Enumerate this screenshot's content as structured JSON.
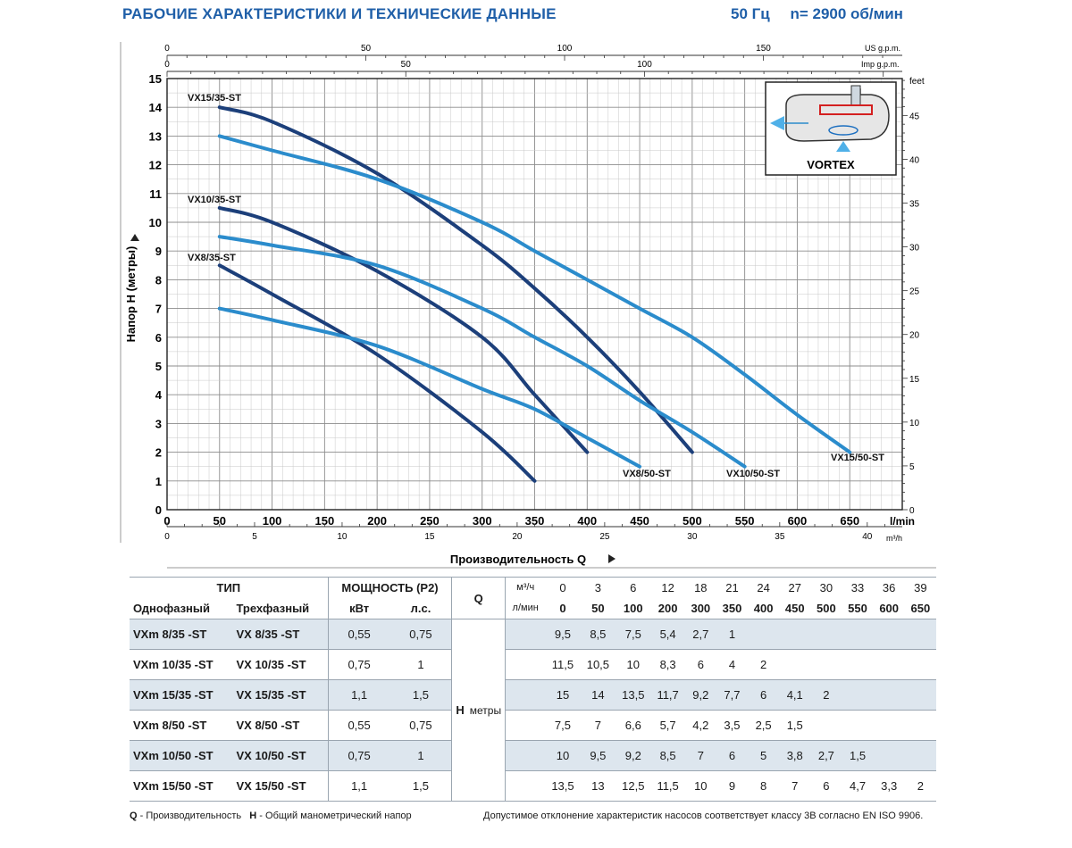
{
  "header": {
    "title": "РАБОЧИЕ ХАРАКТЕРИСТИКИ И ТЕХНИЧЕСКИЕ ДАННЫЕ",
    "freq": "50 Гц",
    "speed": "n= 2900 об/мин"
  },
  "chart_data": {
    "type": "line",
    "xlabel": "Производительность Q",
    "ylabel": "Напор H (метры)",
    "x_unit": "l/min",
    "x_ticks": [
      0,
      50,
      100,
      150,
      200,
      250,
      300,
      350,
      400,
      450,
      500,
      550,
      600,
      650
    ],
    "xlim": [
      0,
      700
    ],
    "ylim": [
      0,
      15
    ],
    "y_ticks": [
      0,
      1,
      2,
      3,
      4,
      5,
      6,
      7,
      8,
      9,
      10,
      11,
      12,
      13,
      14,
      15
    ],
    "top_axis_us": {
      "unit": "US g.p.m.",
      "ticks": [
        0,
        50,
        100,
        150
      ]
    },
    "top_axis_imp": {
      "unit": "Imp g.p.m.",
      "ticks": [
        0,
        50,
        100
      ]
    },
    "bottom_axis_m3h": {
      "unit": "m³/h",
      "ticks": [
        0,
        5,
        10,
        15,
        20,
        25,
        30,
        35,
        40
      ]
    },
    "right_axis_feet": {
      "unit": "feet",
      "ticks": [
        0,
        5,
        10,
        15,
        20,
        25,
        30,
        35,
        40,
        45
      ]
    },
    "inset_label": "VORTEX",
    "grid": true,
    "series": [
      {
        "name": "VX8/35-ST",
        "label": "VX8/35-ST",
        "color": "#1c3f7a",
        "x": [
          50,
          100,
          200,
          300,
          350
        ],
        "y": [
          8.5,
          7.5,
          5.4,
          2.7,
          1
        ]
      },
      {
        "name": "VX10/35-ST",
        "label": "VX10/35-ST",
        "color": "#1c3f7a",
        "x": [
          50,
          100,
          200,
          300,
          350,
          400
        ],
        "y": [
          10.5,
          10,
          8.3,
          6,
          4,
          2
        ]
      },
      {
        "name": "VX15/35-ST",
        "label": "VX15/35-ST",
        "color": "#1c3f7a",
        "x": [
          50,
          100,
          200,
          300,
          350,
          400,
          450,
          500
        ],
        "y": [
          14,
          13.5,
          11.7,
          9.2,
          7.7,
          6,
          4.1,
          2
        ]
      },
      {
        "name": "VX8/50-ST",
        "label": "VX8/50-ST",
        "color": "#2b8ccc",
        "x": [
          50,
          100,
          200,
          300,
          350,
          400,
          450
        ],
        "y": [
          7,
          6.6,
          5.7,
          4.2,
          3.5,
          2.5,
          1.5
        ]
      },
      {
        "name": "VX10/50-ST",
        "label": "VX10/50-ST",
        "color": "#2b8ccc",
        "x": [
          50,
          100,
          200,
          300,
          350,
          400,
          450,
          500,
          550
        ],
        "y": [
          9.5,
          9.2,
          8.5,
          7,
          6,
          5,
          3.8,
          2.7,
          1.5
        ]
      },
      {
        "name": "VX15/50-ST",
        "label": "VX15/50-ST",
        "color": "#2b8ccc",
        "x": [
          50,
          100,
          200,
          300,
          350,
          400,
          450,
          500,
          550,
          600,
          650
        ],
        "y": [
          13,
          12.5,
          11.5,
          10,
          9,
          8,
          7,
          6,
          4.7,
          3.3,
          2
        ]
      }
    ]
  },
  "table": {
    "type_header": "ТИП",
    "power_header": "МОЩНОСТЬ (P2)",
    "q_label": "Q",
    "q_unit_m3": "м³/ч",
    "q_unit_l": "л/мин",
    "col_single": "Однофазный",
    "col_three": "Трехфазный",
    "col_kw": "кВт",
    "col_hp": "л.с.",
    "h_label": "H",
    "h_unit": "метры",
    "q_m3": [
      "0",
      "3",
      "6",
      "12",
      "18",
      "21",
      "24",
      "27",
      "30",
      "33",
      "36",
      "39"
    ],
    "q_l": [
      "0",
      "50",
      "100",
      "200",
      "300",
      "350",
      "400",
      "450",
      "500",
      "550",
      "600",
      "650"
    ],
    "rows": [
      {
        "single": "VXm 8/35  -ST",
        "three": "VX 8/35  -ST",
        "kw": "0,55",
        "hp": "0,75",
        "h": [
          "9,5",
          "8,5",
          "7,5",
          "5,4",
          "2,7",
          "1",
          "",
          "",
          "",
          "",
          "",
          ""
        ]
      },
      {
        "single": "VXm 10/35 -ST",
        "three": "VX 10/35 -ST",
        "kw": "0,75",
        "hp": "1",
        "h": [
          "11,5",
          "10,5",
          "10",
          "8,3",
          "6",
          "4",
          "2",
          "",
          "",
          "",
          "",
          ""
        ]
      },
      {
        "single": "VXm 15/35 -ST",
        "three": "VX 15/35 -ST",
        "kw": "1,1",
        "hp": "1,5",
        "h": [
          "15",
          "14",
          "13,5",
          "11,7",
          "9,2",
          "7,7",
          "6",
          "4,1",
          "2",
          "",
          "",
          ""
        ]
      },
      {
        "single": "VXm 8/50  -ST",
        "three": "VX 8/50  -ST",
        "kw": "0,55",
        "hp": "0,75",
        "h": [
          "7,5",
          "7",
          "6,6",
          "5,7",
          "4,2",
          "3,5",
          "2,5",
          "1,5",
          "",
          "",
          "",
          ""
        ]
      },
      {
        "single": "VXm 10/50 -ST",
        "three": "VX 10/50 -ST",
        "kw": "0,75",
        "hp": "1",
        "h": [
          "10",
          "9,5",
          "9,2",
          "8,5",
          "7",
          "6",
          "5",
          "3,8",
          "2,7",
          "1,5",
          "",
          ""
        ]
      },
      {
        "single": "VXm 15/50 -ST",
        "three": "VX 15/50 -ST",
        "kw": "1,1",
        "hp": "1,5",
        "h": [
          "13,5",
          "13",
          "12,5",
          "11,5",
          "10",
          "9",
          "8",
          "7",
          "6",
          "4,7",
          "3,3",
          "2"
        ]
      }
    ]
  },
  "footer": {
    "q_key": "Q",
    "q_text": " - Производительность",
    "h_key": "H",
    "h_text": " - Общий манометрический напор",
    "note": "Допустимое отклонение характеристик насосов соответствует классу 3B согласно EN ISO 9906."
  }
}
